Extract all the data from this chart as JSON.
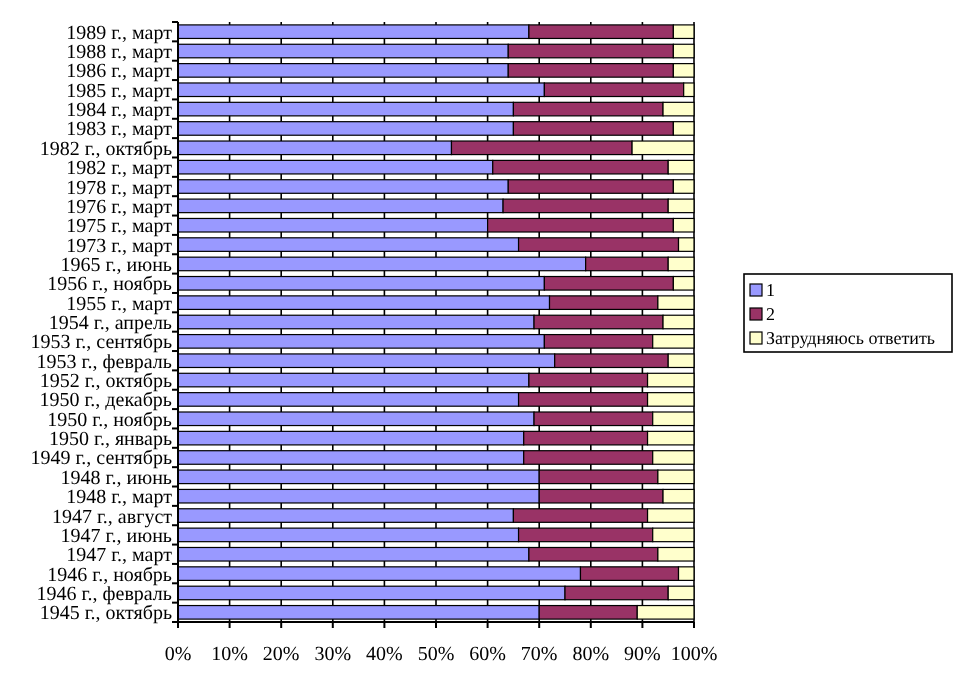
{
  "chart_data": {
    "type": "bar",
    "orientation": "horizontal",
    "stacked": true,
    "categories": [
      "1989 г., март",
      "1988 г., март",
      "1986 г., март",
      "1985 г., март",
      "1984 г., март",
      "1983 г., март",
      "1982 г., октябрь",
      "1982 г., март",
      "1978 г., март",
      "1976 г., март",
      "1975 г., март",
      "1973 г., март",
      "1965 г., июнь",
      "1956 г., ноябрь",
      "1955 г., март",
      "1954 г., апрель",
      "1953 г., сентябрь",
      "1953 г., февраль",
      "1952 г., октябрь",
      "1950 г., декабрь",
      "1950 г., ноябрь",
      "1950 г., январь",
      "1949 г., сентябрь",
      "1948 г., июнь",
      "1948 г., март",
      "1947 г., август",
      "1947 г., июнь",
      "1947 г., март",
      "1946 г., ноябрь",
      "1946 г., февраль",
      "1945 г., октябрь"
    ],
    "series": [
      {
        "name": "1",
        "color": "#9999ff",
        "values": [
          68,
          64,
          64,
          71,
          65,
          65,
          53,
          61,
          64,
          63,
          60,
          66,
          79,
          71,
          72,
          69,
          71,
          73,
          68,
          66,
          69,
          67,
          67,
          70,
          70,
          65,
          66,
          68,
          78,
          75,
          70
        ]
      },
      {
        "name": "2",
        "color": "#993366",
        "values": [
          28,
          32,
          32,
          27,
          29,
          31,
          35,
          34,
          32,
          32,
          36,
          31,
          16,
          25,
          21,
          25,
          21,
          22,
          23,
          25,
          23,
          24,
          25,
          23,
          24,
          26,
          26,
          25,
          19,
          20,
          19
        ]
      },
      {
        "name": "Затрудняюсь ответить",
        "color": "#ffffcc",
        "values": [
          4,
          4,
          4,
          2,
          6,
          4,
          12,
          5,
          4,
          5,
          4,
          3,
          5,
          4,
          7,
          6,
          8,
          5,
          9,
          9,
          8,
          9,
          8,
          7,
          6,
          9,
          8,
          7,
          3,
          5,
          11
        ]
      }
    ],
    "xlim": [
      0,
      100
    ],
    "xticks": [
      {
        "value": 0,
        "label": "0%"
      },
      {
        "value": 10,
        "label": "10%"
      },
      {
        "value": 20,
        "label": "20%"
      },
      {
        "value": 30,
        "label": "30%"
      },
      {
        "value": 40,
        "label": "40%"
      },
      {
        "value": 50,
        "label": "50%"
      },
      {
        "value": 60,
        "label": "60%"
      },
      {
        "value": 70,
        "label": "70%"
      },
      {
        "value": 80,
        "label": "80%"
      },
      {
        "value": 90,
        "label": "90%"
      },
      {
        "value": 100,
        "label": "100%"
      }
    ],
    "grid": "x",
    "legend": "right"
  }
}
